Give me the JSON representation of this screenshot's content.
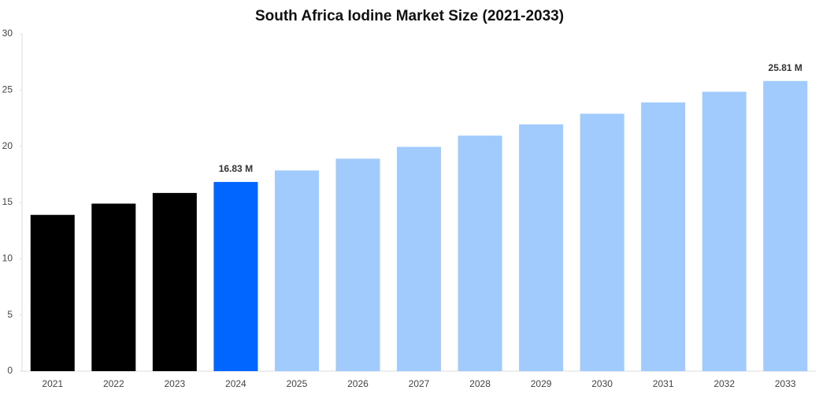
{
  "chart_data": {
    "type": "bar",
    "title": "South Africa Iodine Market Size (2021-2033)",
    "categories": [
      "2021",
      "2022",
      "2023",
      "2024",
      "2025",
      "2026",
      "2027",
      "2028",
      "2029",
      "2030",
      "2031",
      "2032",
      "2033"
    ],
    "values": [
      13.9,
      14.9,
      15.85,
      16.83,
      17.85,
      18.9,
      19.95,
      20.95,
      21.95,
      22.9,
      23.9,
      24.85,
      25.81
    ],
    "value_labels": [
      null,
      null,
      null,
      "16.83 M",
      null,
      null,
      null,
      null,
      null,
      null,
      null,
      null,
      "25.81 M"
    ],
    "colors": [
      "#000000",
      "#000000",
      "#000000",
      "#0066ff",
      "#a0cbfc",
      "#a0cbfc",
      "#a0cbfc",
      "#a0cbfc",
      "#a0cbfc",
      "#a0cbfc",
      "#a0cbfc",
      "#a0cbfc",
      "#a0cbfc"
    ],
    "ylim": [
      0,
      30
    ],
    "yticks": [
      0,
      5,
      10,
      15,
      20,
      25,
      30
    ],
    "grid": false
  }
}
